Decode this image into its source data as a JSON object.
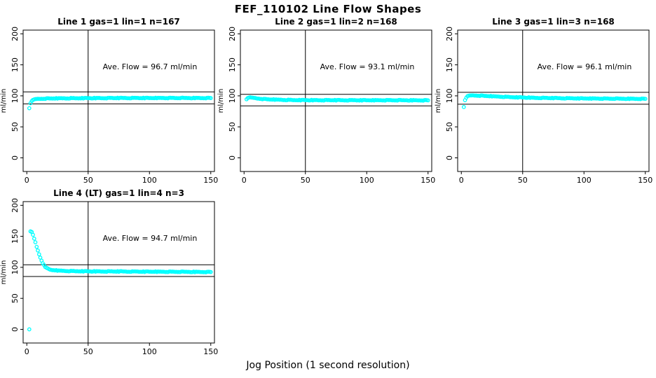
{
  "figure": {
    "title": "FEF_110102  Line Flow Shapes",
    "xlabel": "Jog Position (1 second resolution)",
    "background_color": "#ffffff",
    "point_color": "#00ffff",
    "axis_color": "#000000"
  },
  "chart_data": [
    {
      "type": "scatter",
      "title": "Line 1 gas=1 lin=1 n=167",
      "annotation": "Ave. Flow =  96.7  ml/min",
      "ave_flow_ml_min": 96.7,
      "n": 167,
      "ylabel": "ml/min",
      "x_ticks": [
        0,
        50,
        100,
        150
      ],
      "y_ticks": [
        0,
        50,
        100,
        150,
        200
      ],
      "xlim": [
        -3,
        153
      ],
      "ylim": [
        -22,
        206
      ],
      "vline_x": 50,
      "hlines": [
        106.4,
        87.0
      ],
      "x_range": [
        2,
        150
      ],
      "anchors": [
        [
          2,
          80
        ],
        [
          3,
          88
        ],
        [
          4,
          91.5
        ],
        [
          5,
          93
        ],
        [
          6,
          94
        ],
        [
          8,
          94.8
        ],
        [
          10,
          95.2
        ],
        [
          15,
          95.6
        ],
        [
          20,
          95.8
        ],
        [
          30,
          96.0
        ],
        [
          50,
          96.3
        ],
        [
          70,
          96.4
        ],
        [
          90,
          96.5
        ],
        [
          110,
          96.5
        ],
        [
          130,
          96.5
        ],
        [
          150,
          96.5
        ]
      ]
    },
    {
      "type": "scatter",
      "title": "Line 2 gas=1 lin=2 n=168",
      "annotation": "Ave. Flow =  93.1  ml/min",
      "ave_flow_ml_min": 93.1,
      "n": 168,
      "ylabel": "ml/min",
      "x_ticks": [
        0,
        50,
        100,
        150
      ],
      "y_ticks": [
        0,
        50,
        100,
        150,
        200
      ],
      "xlim": [
        -3,
        153
      ],
      "ylim": [
        -22,
        206
      ],
      "vline_x": 50,
      "hlines": [
        102.4,
        83.8
      ],
      "x_range": [
        2,
        150
      ],
      "anchors": [
        [
          2,
          94.5
        ],
        [
          3,
          96.5
        ],
        [
          4,
          97.2
        ],
        [
          6,
          97.0
        ],
        [
          8,
          96.5
        ],
        [
          10,
          96.0
        ],
        [
          15,
          95.0
        ],
        [
          20,
          94.3
        ],
        [
          30,
          93.6
        ],
        [
          40,
          93.2
        ],
        [
          60,
          93.0
        ],
        [
          80,
          92.9
        ],
        [
          100,
          92.9
        ],
        [
          120,
          92.9
        ],
        [
          150,
          92.8
        ]
      ]
    },
    {
      "type": "scatter",
      "title": "Line 3 gas=1 lin=3 n=168",
      "annotation": "Ave. Flow =  96.1  ml/min",
      "ave_flow_ml_min": 96.1,
      "n": 168,
      "ylabel": "ml/min",
      "x_ticks": [
        0,
        50,
        100,
        150
      ],
      "y_ticks": [
        0,
        50,
        100,
        150,
        200
      ],
      "xlim": [
        -3,
        153
      ],
      "ylim": [
        -22,
        206
      ],
      "vline_x": 50,
      "hlines": [
        105.7,
        86.5
      ],
      "x_range": [
        2,
        150
      ],
      "anchors": [
        [
          2,
          82
        ],
        [
          3,
          93
        ],
        [
          4,
          97
        ],
        [
          5,
          99
        ],
        [
          6,
          100
        ],
        [
          8,
          100.5
        ],
        [
          10,
          100.7
        ],
        [
          15,
          100.3
        ],
        [
          20,
          99.8
        ],
        [
          30,
          98.8
        ],
        [
          40,
          98.0
        ],
        [
          60,
          96.8
        ],
        [
          80,
          96.2
        ],
        [
          100,
          95.8
        ],
        [
          120,
          95.5
        ],
        [
          150,
          95.2
        ]
      ]
    },
    {
      "type": "scatter",
      "title": "Line 4 (LT) gas=1 lin=4 n=3",
      "annotation": "Ave. Flow =  94.7  ml/min",
      "ave_flow_ml_min": 94.7,
      "n": 3,
      "ylabel": "ml/min",
      "x_ticks": [
        0,
        50,
        100,
        150
      ],
      "y_ticks": [
        0,
        50,
        100,
        150,
        200
      ],
      "xlim": [
        -3,
        153
      ],
      "ylim": [
        -22,
        206
      ],
      "vline_x": 50,
      "hlines": [
        104.2,
        85.2
      ],
      "x_range": [
        2,
        150
      ],
      "anchors": [
        [
          2,
          0
        ],
        [
          3,
          158
        ],
        [
          4,
          157
        ],
        [
          5,
          152
        ],
        [
          6,
          146
        ],
        [
          7,
          140
        ],
        [
          8,
          133
        ],
        [
          9,
          127
        ],
        [
          10,
          121
        ],
        [
          11,
          116
        ],
        [
          12,
          111
        ],
        [
          13,
          107
        ],
        [
          14,
          104
        ],
        [
          15,
          101
        ],
        [
          16,
          99
        ],
        [
          18,
          97
        ],
        [
          20,
          95.8
        ],
        [
          25,
          94.8
        ],
        [
          30,
          94.3
        ],
        [
          40,
          93.8
        ],
        [
          60,
          93.4
        ],
        [
          80,
          93.2
        ],
        [
          100,
          93.0
        ],
        [
          120,
          92.8
        ],
        [
          150,
          92.5
        ]
      ]
    }
  ]
}
